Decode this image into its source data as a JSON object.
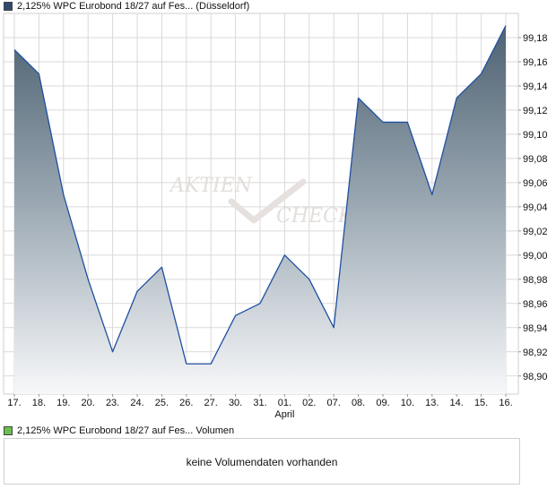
{
  "price_legend": {
    "label": "2,125% WPC Eurobond 18/27 auf Fes... (Düsseldorf)",
    "color": "#2f4a6d"
  },
  "volume_legend": {
    "label": "2,125% WPC Eurobond 18/27 auf Fes... Volumen",
    "color": "#6bbf4e"
  },
  "volume_panel": {
    "message": "keine Volumendaten vorhanden"
  },
  "watermark": {
    "line1": "AKTIEN",
    "line2": "CHECK"
  },
  "chart_data": {
    "type": "area",
    "categories": [
      "17.",
      "18.",
      "19.",
      "20.",
      "23.",
      "24.",
      "25.",
      "26.",
      "27.",
      "30.",
      "31.",
      "01.",
      "02.",
      "07.",
      "08.",
      "09.",
      "10.",
      "13.",
      "14.",
      "15.",
      "16."
    ],
    "month_label": {
      "under_category": "01.",
      "text": "April"
    },
    "series": [
      {
        "values": [
          99.17,
          99.15,
          99.05,
          98.98,
          98.92,
          98.97,
          98.99,
          98.91,
          98.91,
          98.95,
          98.96,
          99.0,
          98.98,
          98.94,
          99.13,
          99.11,
          99.11,
          99.05,
          99.13,
          99.15,
          99.19
        ]
      }
    ],
    "y_ticks": [
      "98,90",
      "98,92",
      "98,94",
      "98,96",
      "98,98",
      "99,00",
      "99,02",
      "99,04",
      "99,06",
      "99,08",
      "99,10",
      "99,12",
      "99,14",
      "99,16",
      "99,18"
    ],
    "ylim": [
      98.885,
      99.2
    ],
    "grid": true,
    "colors": {
      "line": "#1f4fa0",
      "fill_top": "#4e6272",
      "fill_bottom": "#f7f8fa",
      "grid": "#d9d9d9",
      "frame": "#cfcfcf"
    }
  }
}
